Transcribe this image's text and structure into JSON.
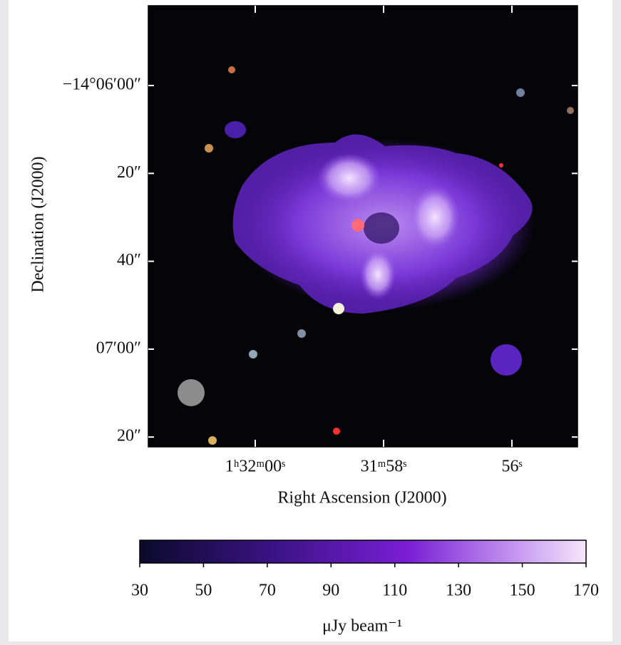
{
  "chart_data": {
    "type": "image",
    "ylabel": "Declination (J2000)",
    "xlabel": "Right Ascension (J2000)",
    "yticklabels": [
      "−14°06′00″",
      "20″",
      "40″",
      "07′00″",
      "20″"
    ],
    "xticklabels": [
      "1ʰ32ᵐ00ˢ",
      "31ᵐ58ˢ",
      "56ˢ"
    ],
    "colorbar": {
      "label": "μJy beam⁻¹",
      "clim": [
        30,
        170
      ],
      "ticks": [
        30,
        50,
        70,
        90,
        110,
        130,
        150,
        170
      ]
    }
  }
}
